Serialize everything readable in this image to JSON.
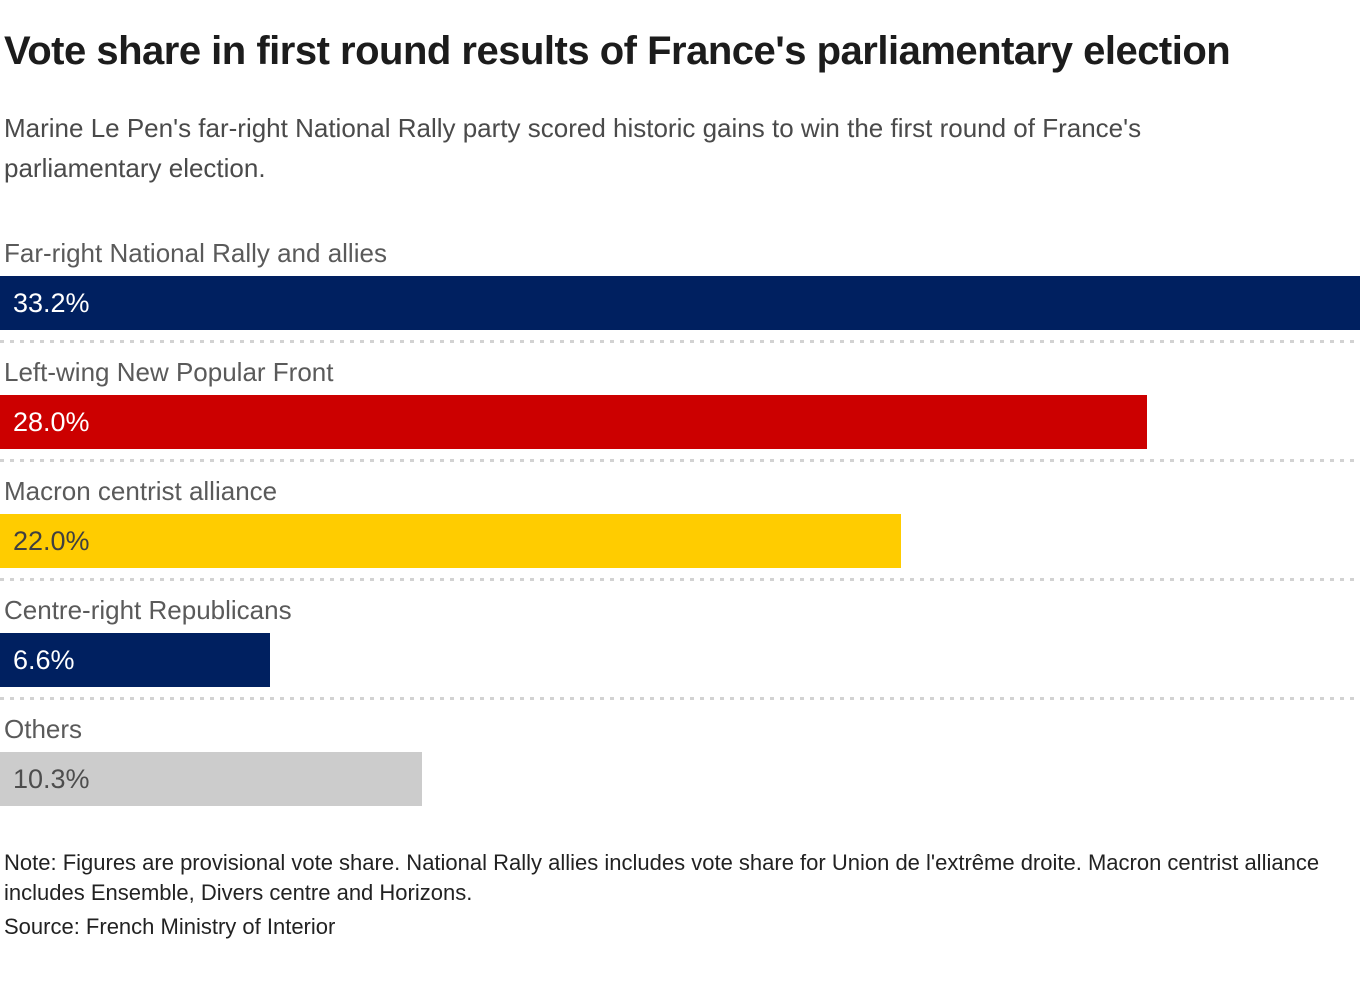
{
  "header": {
    "title": "Vote share in first round results of France's parliamentary election",
    "subtitle": "Marine Le Pen's far-right National Rally party scored historic gains to win the first round of France's parliamentary election."
  },
  "chart_data": {
    "type": "bar",
    "orientation": "horizontal",
    "title": "Vote share in first round results of France's parliamentary election",
    "xlabel": "",
    "ylabel": "",
    "xlim": [
      0,
      33.2
    ],
    "grid": false,
    "legend": "none",
    "categories": [
      "Far-right National Rally and allies",
      "Left-wing New Popular Front",
      "Macron centrist alliance",
      "Centre-right Republicans",
      "Others"
    ],
    "values": [
      33.2,
      28.0,
      22.0,
      6.6,
      10.3
    ],
    "bars": [
      {
        "label": "Far-right National Rally and allies",
        "value": 33.2,
        "value_label": "33.2%",
        "color": "#002060",
        "text_color": "#ffffff"
      },
      {
        "label": "Left-wing New Popular Front",
        "value": 28.0,
        "value_label": "28.0%",
        "color": "#cc0000",
        "text_color": "#ffffff"
      },
      {
        "label": "Macron centrist alliance",
        "value": 22.0,
        "value_label": "22.0%",
        "color": "#ffcc00",
        "text_color": "#404040"
      },
      {
        "label": "Centre-right Republicans",
        "value": 6.6,
        "value_label": "6.6%",
        "color": "#002060",
        "text_color": "#ffffff"
      },
      {
        "label": "Others",
        "value": 10.3,
        "value_label": "10.3%",
        "color": "#cccccc",
        "text_color": "#4d4d4d"
      }
    ],
    "separator_color": "#d2d2d2"
  },
  "footer": {
    "note": "Note: Figures are provisional vote share. National Rally allies includes vote share for Union de l'extrême droite. Macron centrist alliance includes Ensemble, Divers centre and Horizons.",
    "source": "Source: French Ministry of Interior"
  }
}
